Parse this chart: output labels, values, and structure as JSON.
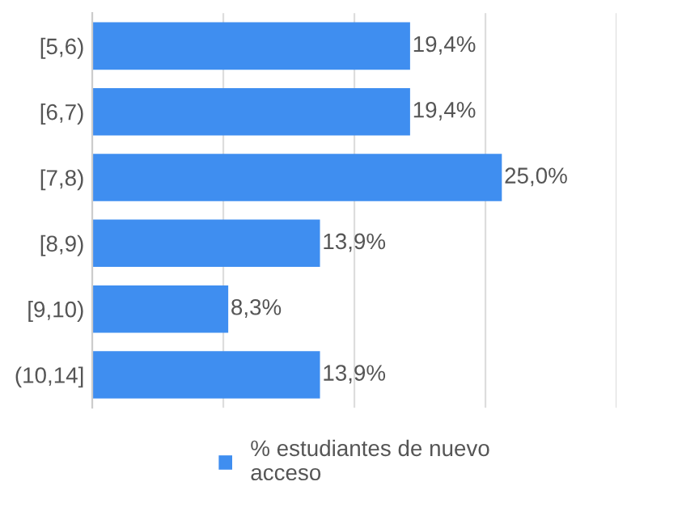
{
  "chart_data": {
    "type": "bar",
    "orientation": "horizontal",
    "categories": [
      "[5,6)",
      "[6,7)",
      "[7,8)",
      "[8,9)",
      "[9,10)",
      "(10,14]"
    ],
    "series": [
      {
        "name": "% estudiantes de nuevo acceso",
        "color": "#3f8ef0",
        "values": [
          19.4,
          19.4,
          25.0,
          13.9,
          8.3,
          13.9
        ],
        "value_labels": [
          "19,4%",
          "19,4%",
          "25,0%",
          "13,9%",
          "8,3%",
          "13,9%"
        ]
      }
    ],
    "xlim": [
      0,
      32
    ],
    "xticks": [
      {
        "value": 8,
        "label": null
      },
      {
        "value": 16,
        "label": null
      },
      {
        "value": 24,
        "label": null
      },
      {
        "value": 32,
        "label": null
      }
    ],
    "tick_labels": "y",
    "grid": "x",
    "legend": "bottom"
  }
}
